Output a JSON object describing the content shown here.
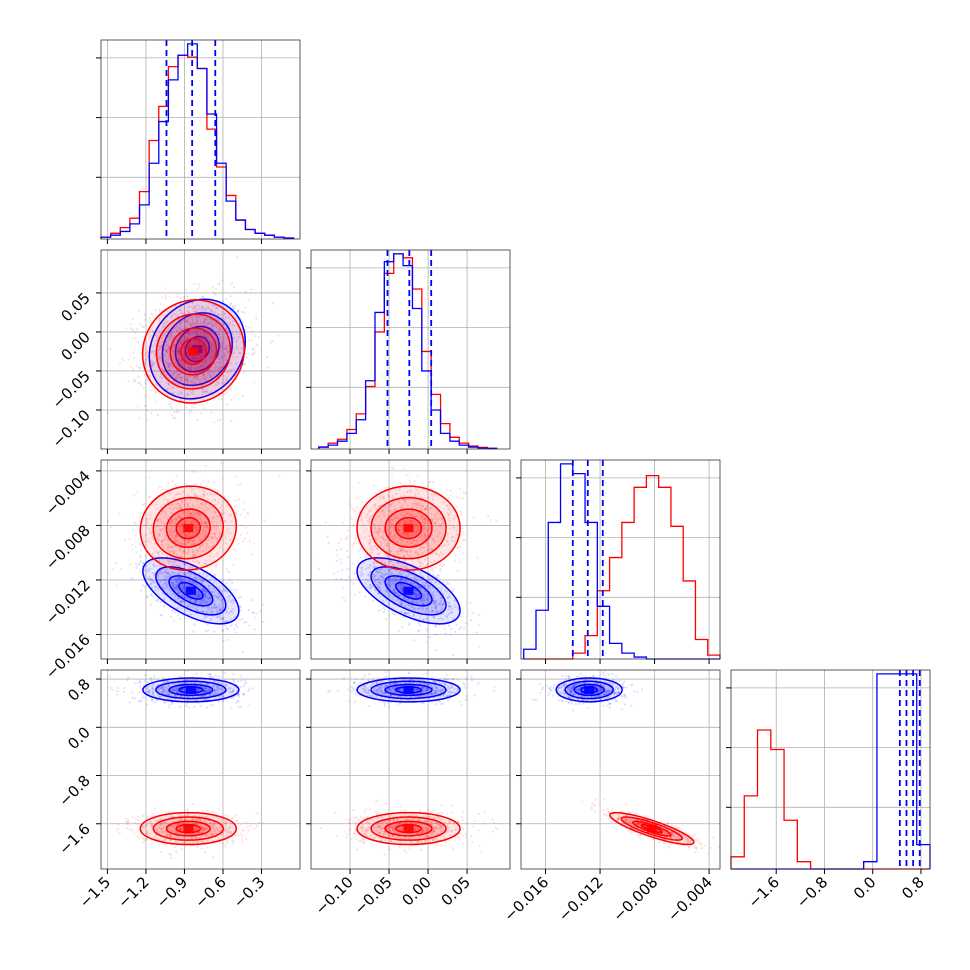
{
  "chart_data": {
    "type": "corner",
    "title": "",
    "grid": true,
    "colors": {
      "series_a": "#0000ff",
      "series_b": "#ff0000"
    },
    "series": [
      {
        "color": "#0000ff"
      },
      {
        "color": "#ff0000"
      }
    ],
    "parameters": [
      {
        "index": 0,
        "range": [
          -1.55,
          0.0
        ],
        "ticks": [
          -1.5,
          -1.2,
          -0.9,
          -0.6,
          -0.3
        ],
        "tick_labels": [
          "−1.5",
          "−1.2",
          "−0.9",
          "−0.6",
          "−0.3"
        ],
        "quantiles": {
          "series_a": [
            -1.04,
            -0.84,
            -0.66
          ]
        },
        "histogram": {
          "edges": [
            -1.55,
            -1.475,
            -1.4,
            -1.325,
            -1.25,
            -1.175,
            -1.1,
            -1.025,
            -0.95,
            -0.875,
            -0.8,
            -0.725,
            -0.65,
            -0.575,
            -0.5,
            -0.425,
            -0.35,
            -0.275,
            -0.2,
            -0.125,
            -0.05
          ],
          "series_a": [
            1,
            2,
            4,
            8,
            18,
            40,
            62,
            84,
            97,
            103,
            90,
            66,
            40,
            20,
            10,
            5,
            3,
            2,
            1,
            0.5
          ],
          "series_b": [
            1,
            3,
            6,
            11,
            25,
            52,
            70,
            91,
            97,
            96,
            90,
            58,
            38,
            23,
            10,
            5,
            3,
            2,
            1,
            0.5
          ]
        }
      },
      {
        "index": 1,
        "range": [
          -0.15,
          0.105
        ],
        "ticks": [
          -0.1,
          -0.05,
          0.0,
          0.05
        ],
        "tick_labels": [
          "−0.10",
          "−0.05",
          "0.00",
          "0.05"
        ],
        "quantiles": {
          "series_a": [
            -0.052,
            -0.024,
            0.004
          ]
        },
        "histogram": {
          "edges": [
            -0.14,
            -0.128,
            -0.116,
            -0.104,
            -0.092,
            -0.08,
            -0.068,
            -0.056,
            -0.044,
            -0.032,
            -0.02,
            -0.008,
            0.004,
            0.016,
            0.028,
            0.04,
            0.052,
            0.064,
            0.076,
            0.088
          ],
          "series_a": [
            1,
            2,
            4,
            8,
            15,
            35,
            70,
            96,
            100,
            94,
            72,
            40,
            20,
            8,
            4,
            2,
            1,
            0.5,
            0.3
          ],
          "series_b": [
            1,
            3,
            5,
            10,
            18,
            32,
            60,
            90,
            100,
            98,
            82,
            50,
            28,
            13,
            6,
            3,
            1.5,
            0.8,
            0.4
          ]
        }
      },
      {
        "index": 2,
        "range": [
          -0.0178,
          -0.0032
        ],
        "ticks": [
          -0.016,
          -0.012,
          -0.008,
          -0.004
        ],
        "tick_labels": [
          "−0.016",
          "−0.012",
          "−0.008",
          "−0.004"
        ],
        "quantiles": {
          "series_a": [
            -0.014,
            -0.0129,
            -0.0118
          ]
        },
        "histogram": {
          "edges": [
            -0.0176,
            -0.0167,
            -0.0158,
            -0.0149,
            -0.014,
            -0.0131,
            -0.0122,
            -0.0113,
            -0.0104,
            -0.0095,
            -0.0086,
            -0.0077,
            -0.0068,
            -0.0059,
            -0.005,
            -0.0041,
            -0.0032
          ],
          "series_a": [
            5,
            25,
            70,
            100,
            95,
            70,
            27,
            8,
            3,
            1,
            0,
            0,
            0,
            0,
            0,
            0
          ],
          "series_b": [
            0,
            0,
            0,
            0,
            3,
            12,
            35,
            52,
            70,
            88,
            94,
            88,
            68,
            40,
            10,
            2
          ]
        }
      },
      {
        "index": 3,
        "range": [
          -2.35,
          0.95
        ],
        "ticks": [
          -1.6,
          -0.8,
          0.0,
          0.8
        ],
        "tick_labels": [
          "−1.6",
          "−0.8",
          "0.0",
          "0.8"
        ],
        "quantiles": {
          "series_a": [
            0.45,
            0.56,
            0.67,
            0.78
          ]
        },
        "histogram": {
          "edges": [
            -2.35,
            -2.13,
            -1.91,
            -1.69,
            -1.47,
            -1.25,
            -1.03,
            -0.81,
            -0.59,
            -0.37,
            -0.15,
            0.07,
            0.29,
            0.51,
            0.73,
            0.95
          ],
          "series_a": [
            0,
            0,
            0,
            0,
            0,
            0,
            0,
            0,
            0,
            0,
            3,
            80,
            80,
            80,
            10
          ],
          "series_b": [
            5,
            30,
            57,
            49,
            20,
            3,
            0,
            0,
            0,
            0,
            0,
            0,
            0,
            0,
            0
          ]
        }
      }
    ],
    "pairs": [
      {
        "x": 0,
        "y": 1,
        "series_a": {
          "mean": [
            -0.8,
            -0.022
          ],
          "sd": [
            0.17,
            0.029
          ],
          "rho": 0.15
        },
        "series_b": {
          "mean": [
            -0.83,
            -0.025
          ],
          "sd": [
            0.18,
            0.03
          ],
          "rho": 0.05
        }
      },
      {
        "x": 0,
        "y": 2,
        "series_a": {
          "mean": [
            -0.85,
            -0.0128
          ],
          "sd": [
            0.17,
            0.0011
          ],
          "rho": -0.6
        },
        "series_b": {
          "mean": [
            -0.87,
            -0.0082
          ],
          "sd": [
            0.17,
            0.0014
          ],
          "rho": 0.05
        }
      },
      {
        "x": 1,
        "y": 2,
        "series_a": {
          "mean": [
            -0.025,
            -0.0128
          ],
          "sd": [
            0.03,
            0.0011
          ],
          "rho": -0.6
        },
        "series_b": {
          "mean": [
            -0.025,
            -0.0082
          ],
          "sd": [
            0.03,
            0.0014
          ],
          "rho": 0.0
        }
      },
      {
        "x": 0,
        "y": 3,
        "series_a": {
          "mean": [
            -0.85,
            0.62
          ],
          "sd": [
            0.17,
            0.09
          ],
          "rho": 0.0
        },
        "series_b": {
          "mean": [
            -0.87,
            -1.68
          ],
          "sd": [
            0.17,
            0.12
          ],
          "rho": 0.0
        }
      },
      {
        "x": 1,
        "y": 3,
        "series_a": {
          "mean": [
            -0.025,
            0.62
          ],
          "sd": [
            0.03,
            0.09
          ],
          "rho": 0.0
        },
        "series_b": {
          "mean": [
            -0.025,
            -1.68
          ],
          "sd": [
            0.03,
            0.12
          ],
          "rho": 0.0
        }
      },
      {
        "x": 2,
        "y": 3,
        "series_a": {
          "mean": [
            -0.0128,
            0.62
          ],
          "sd": [
            0.0011,
            0.09
          ],
          "rho": 0.0
        },
        "series_b": {
          "mean": [
            -0.0082,
            -1.68
          ],
          "sd": [
            0.0014,
            0.12
          ],
          "rho": -0.85
        }
      }
    ]
  }
}
